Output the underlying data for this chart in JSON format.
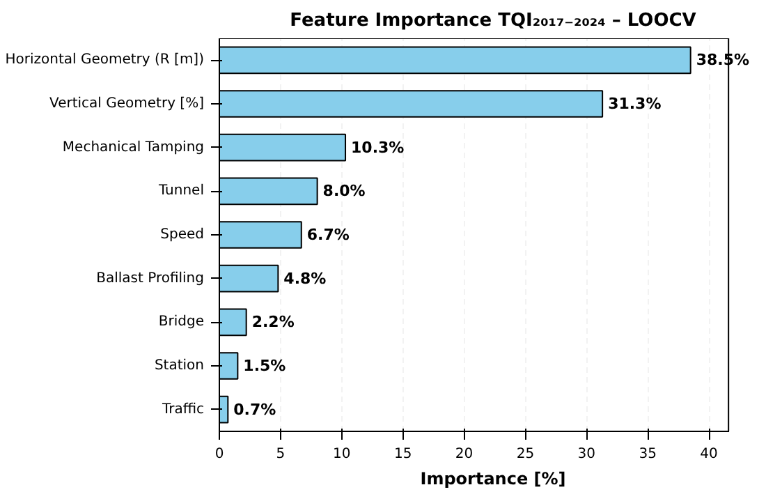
{
  "chart_data": {
    "type": "bar",
    "orientation": "horizontal",
    "title": "Feature Importance TQI₂₀₁₇₋₂₀₂₄ – LOOCV",
    "xlabel": "Importance [%]",
    "categories": [
      "Horizontal Geometry (R [m])",
      "Vertical Geometry [%]",
      "Mechanical Tamping",
      "Tunnel",
      "Speed",
      "Ballast Profiling",
      "Bridge",
      "Station",
      "Traffic"
    ],
    "values": [
      38.5,
      31.3,
      10.3,
      8.0,
      6.7,
      4.8,
      2.2,
      1.5,
      0.7
    ],
    "value_labels": [
      "38.5%",
      "31.3%",
      "10.3%",
      "8.0%",
      "6.7%",
      "4.8%",
      "2.2%",
      "1.5%",
      "0.7%"
    ],
    "color": "#87ceeb",
    "xlim": [
      0,
      41.6
    ],
    "xticks": [
      0,
      5,
      10,
      15,
      20,
      25,
      30,
      35,
      40
    ],
    "grid": "x"
  }
}
